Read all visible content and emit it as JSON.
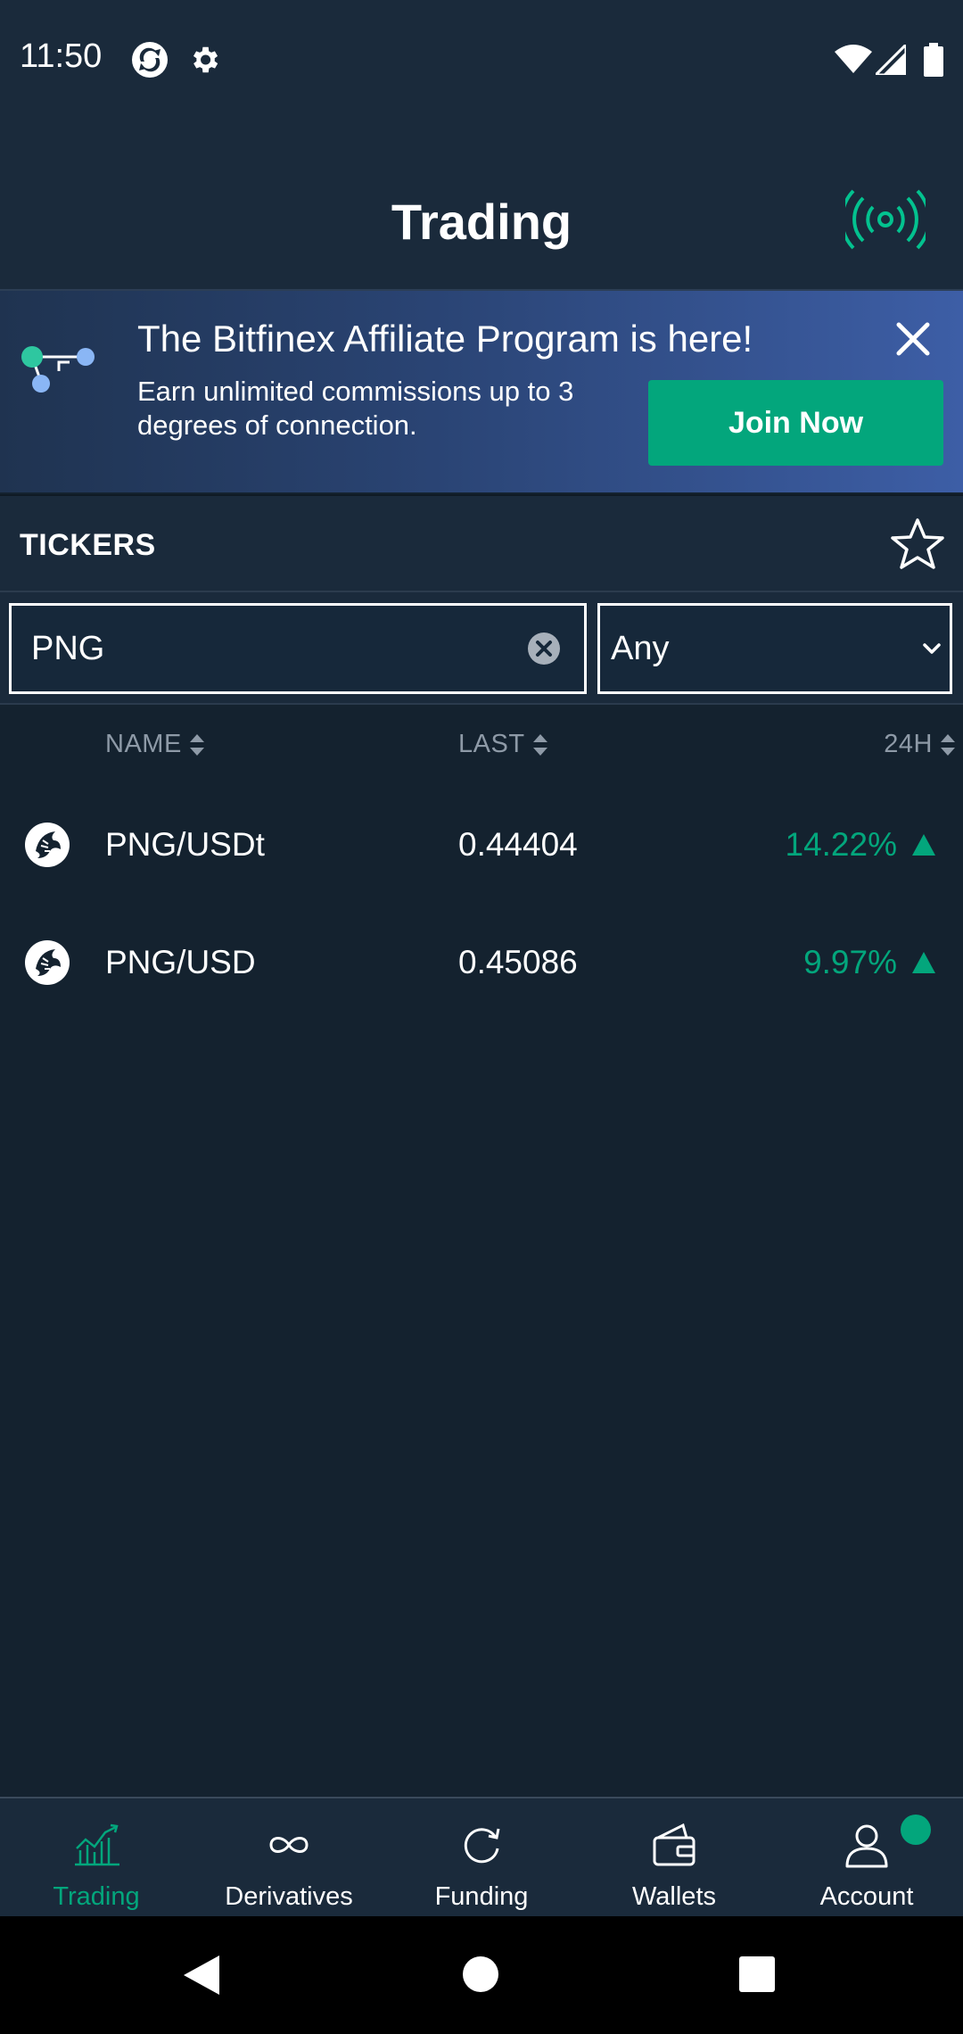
{
  "status_bar": {
    "time": "11:50"
  },
  "header": {
    "title": "Trading"
  },
  "promo": {
    "title": "The Bitfinex Affiliate Program is here!",
    "text": "Earn unlimited commissions up to 3 degrees of connection.",
    "cta": "Join Now"
  },
  "tickers": {
    "title": "TICKERS",
    "search_value": "PNG",
    "quote_filter": "Any",
    "columns": {
      "name": "NAME",
      "last": "LAST",
      "change": "24H"
    },
    "rows": [
      {
        "name": "PNG/USDt",
        "last": "0.44404",
        "change": "14.22%",
        "direction": "up"
      },
      {
        "name": "PNG/USD",
        "last": "0.45086",
        "change": "9.97%",
        "direction": "up"
      }
    ]
  },
  "bottom_nav": {
    "items": [
      {
        "label": "Trading",
        "icon": "chart-icon",
        "active": true
      },
      {
        "label": "Derivatives",
        "icon": "infinity-icon",
        "active": false
      },
      {
        "label": "Funding",
        "icon": "refresh-icon",
        "active": false
      },
      {
        "label": "Wallets",
        "icon": "wallet-icon",
        "active": false
      },
      {
        "label": "Account",
        "icon": "user-icon",
        "active": false
      }
    ]
  },
  "colors": {
    "background": "#14222f",
    "panel": "#1a2a3b",
    "accent_green": "#03a67c",
    "muted_text": "#8e9aa7"
  }
}
